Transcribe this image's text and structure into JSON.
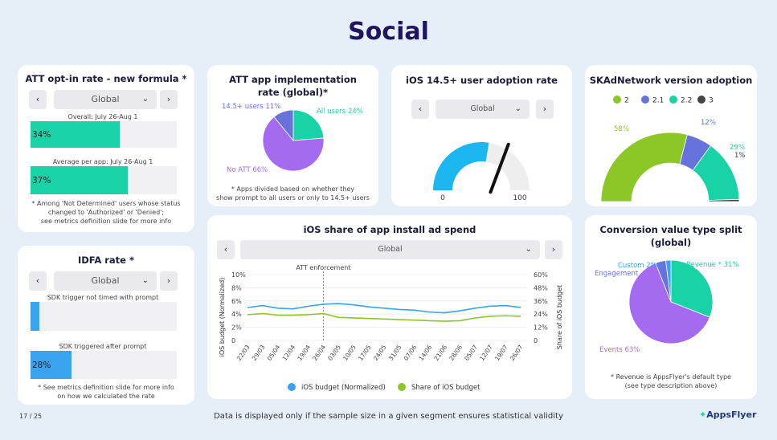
{
  "page": {
    "title": "Social",
    "page_number": "17 / 25",
    "footer": "Data is displayed only if the sample size in a given segment ensures statistical validity",
    "logo_text": "AppsFlyer"
  },
  "att_optin": {
    "title": "ATT opt-in rate - new formula *",
    "select": "Global",
    "prev": "‹",
    "next": "›",
    "bar1_label": "Overall: July 26-Aug 1",
    "bar1_value": "34%",
    "bar1_fraction": 0.34,
    "bar2_label": "Average per app: July 26-Aug 1",
    "bar2_value": "37%",
    "bar2_fraction": 0.37,
    "note_line1": "* Among 'Not Determined' users whose status",
    "note_line2": "changed to 'Authorized' or 'Denied';",
    "note_line3": "see metrics definition slide for more info",
    "color": "#19d3a6"
  },
  "idfa": {
    "title": "IDFA rate *",
    "select": "Global",
    "prev": "‹",
    "next": "›",
    "bar1_label": "SDK trigger not timed with prompt",
    "bar1_value": "",
    "bar1_fraction": 0.06,
    "bar2_label": "SDK triggered after prompt",
    "bar2_value": "28%",
    "bar2_fraction": 0.28,
    "note_line1": "* See metrics definition slide for more info",
    "note_line2": "on how we calculated the rate",
    "color": "#3aa3f0"
  },
  "att_impl": {
    "title_line1": "ATT app implementation",
    "title_line2": "rate (global)*",
    "note_line1": "* Apps divided based on whether they",
    "note_line2": "show prompt to all users or only to 14.5+ users",
    "chart_data": {
      "type": "pie",
      "labels": [
        "All users 24%",
        "No ATT 66%",
        "14.5+ users 11%"
      ],
      "values": [
        24,
        66,
        11
      ],
      "colors": [
        "#19d3a6",
        "#a46af0",
        "#6673dd"
      ]
    }
  },
  "ios_adoption": {
    "title": "iOS 14.5+ user adoption rate",
    "select": "Global",
    "prev": "‹",
    "next": "›",
    "chart_data": {
      "type": "gauge",
      "min": 0,
      "max": 100,
      "min_label": "0",
      "max_label": "100",
      "value": 55,
      "fill_color": "#1cb7f0"
    }
  },
  "skad": {
    "title": "SKAdNetwork version adoption",
    "chart_data": {
      "type": "pie",
      "half": true,
      "legend": [
        "2",
        "2.1",
        "2.2",
        "3"
      ],
      "legend_colors": [
        "#8bc726",
        "#6673dd",
        "#19d3a6",
        "#444444"
      ],
      "values": [
        58,
        12,
        29,
        1
      ],
      "labels": [
        "58%",
        "12%",
        "29%",
        "1%"
      ]
    }
  },
  "ios_share": {
    "title": "iOS share of app install ad spend",
    "select": "Global",
    "prev": "‹",
    "next": "›",
    "annotation": "ATT enforcement",
    "chart_data": {
      "type": "line",
      "x": [
        "22/03",
        "29/03",
        "05/04",
        "12/04",
        "19/04",
        "26/04",
        "03/05",
        "10/05",
        "17/05",
        "24/05",
        "31/05",
        "07/06",
        "14/06",
        "21/06",
        "28/06",
        "05/07",
        "12/07",
        "19/07",
        "26/07"
      ],
      "ylabel_left": "iOS budget (Normalized)",
      "ylabel_right": "Share of iOS budget",
      "left_ticks": [
        "10%",
        "8%",
        "6%",
        "4%",
        "2%",
        "0"
      ],
      "right_ticks": [
        "60%",
        "48%",
        "36%",
        "24%",
        "12%",
        "0"
      ],
      "ylim_left": [
        0,
        10
      ],
      "ylim_right": [
        0,
        60
      ],
      "series": [
        {
          "name": "iOS budget (Normalized)",
          "axis": "left",
          "color": "#3aa3f0",
          "values": [
            5.0,
            5.3,
            4.9,
            4.8,
            5.2,
            5.5,
            5.6,
            5.4,
            5.1,
            4.9,
            4.7,
            4.6,
            4.3,
            4.2,
            4.5,
            4.9,
            5.2,
            5.3,
            5.0
          ]
        },
        {
          "name": "Share of iOS budget",
          "axis": "right",
          "color": "#8bc726",
          "values": [
            23.5,
            24.5,
            23.0,
            23.0,
            23.5,
            24.5,
            21.0,
            20.5,
            20.0,
            19.5,
            19.0,
            18.5,
            18.0,
            17.5,
            18.0,
            20.5,
            22.0,
            22.5,
            22.0
          ]
        }
      ]
    }
  },
  "conv_value": {
    "title_line1": "Conversion value type split",
    "title_line2": "(global)",
    "note_line1": "* Revenue is AppsFlyer's default type",
    "note_line2": "(see type description above)",
    "chart_data": {
      "type": "pie",
      "labels": [
        "Revenue * 31%",
        "Events 63%",
        "Engagement",
        "Custom 2%"
      ],
      "values": [
        31,
        63,
        4,
        2
      ],
      "colors": [
        "#19d3a6",
        "#a46af0",
        "#6673dd",
        "#3aa3f0"
      ]
    }
  }
}
